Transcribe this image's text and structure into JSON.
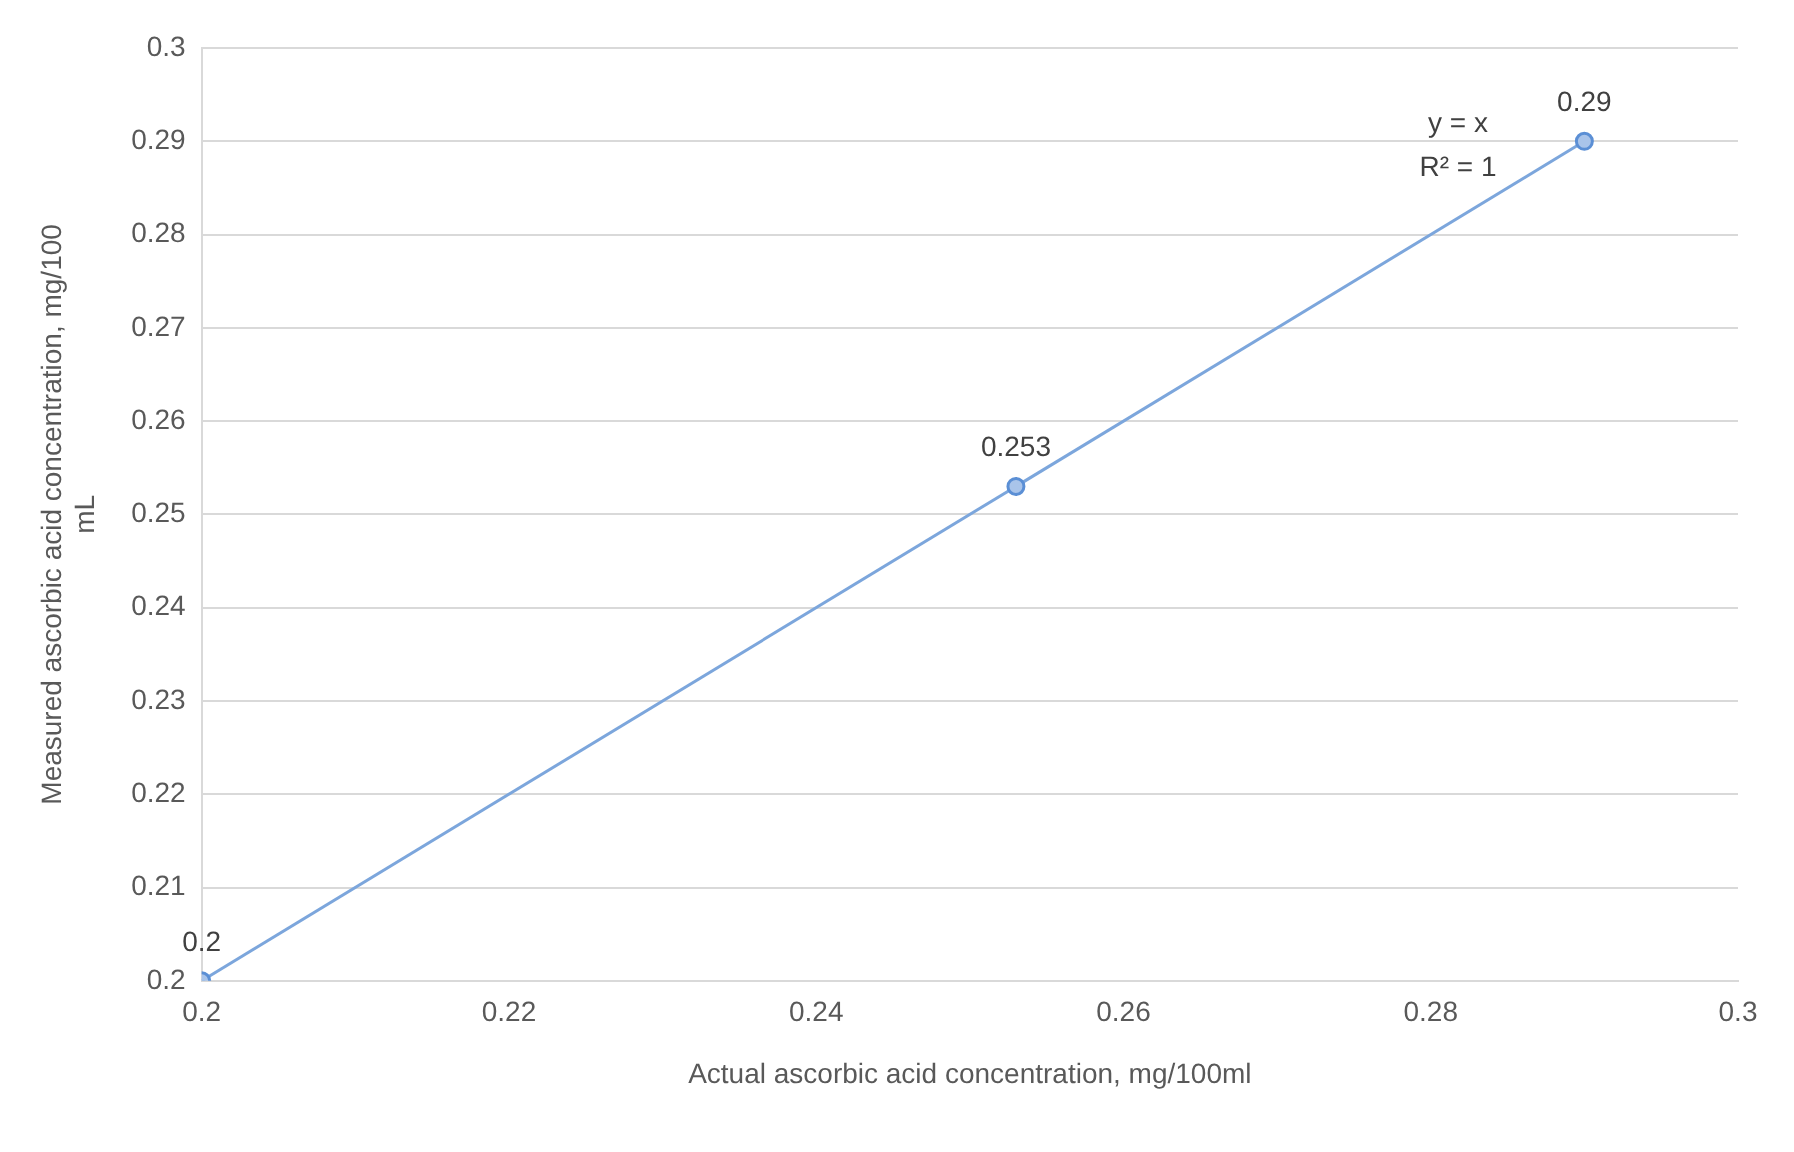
{
  "chart_data": {
    "type": "scatter",
    "xlabel": "Actual ascorbic acid concentration, mg/100ml",
    "ylabel": "Measured ascorbic acid concentration, mg/100 mL",
    "series": [
      {
        "color": "#5b8fd5",
        "marker": "circle",
        "x": [
          0.2,
          0.253,
          0.29
        ],
        "values": [
          0.2,
          0.253,
          0.29
        ],
        "value_labels": [
          "0.2",
          "0.253",
          "0.29"
        ]
      },
      {
        "type": "line",
        "marker": "none",
        "color": "#7ca6dc",
        "x": [
          0.2,
          0.29
        ],
        "values": [
          0.2,
          0.29
        ]
      }
    ],
    "annotations": [
      "y = x",
      "R² = 1"
    ],
    "grid": "y",
    "legend": false,
    "xlim": [
      0.2,
      0.3
    ],
    "xticks": [
      0.2,
      0.22,
      0.24,
      0.26,
      0.28,
      0.3
    ],
    "ylim": [
      0.2,
      0.3
    ],
    "yticks": [
      0.2,
      0.21,
      0.22,
      0.23,
      0.24,
      0.25,
      0.26,
      0.27,
      0.28,
      0.29,
      0.3
    ]
  }
}
